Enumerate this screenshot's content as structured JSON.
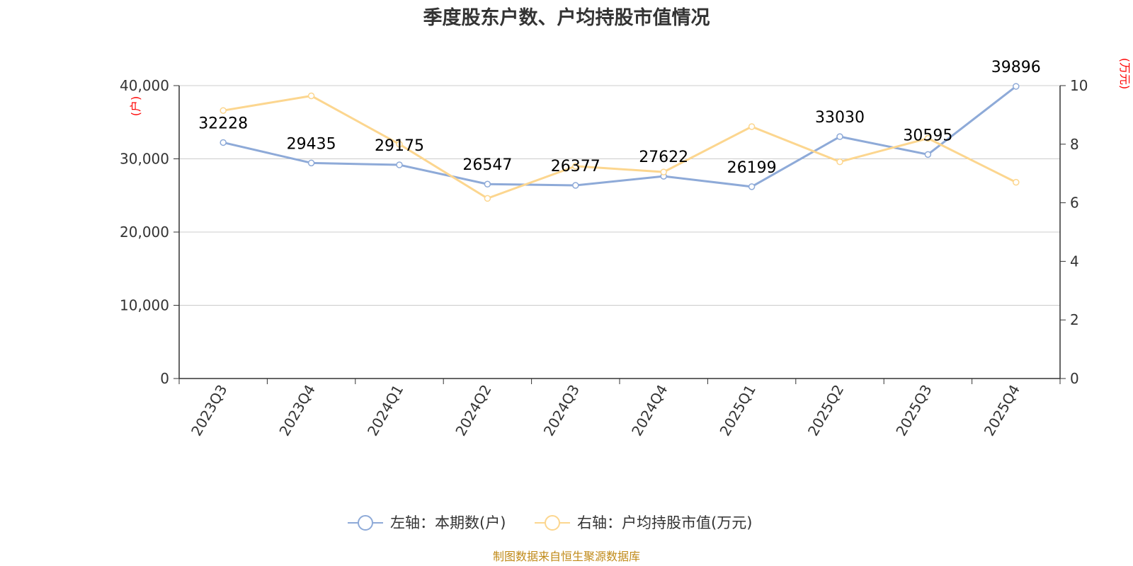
{
  "chart_data": {
    "type": "line",
    "title": "季度股东户数、户均持股市值情况",
    "categories": [
      "2023Q3",
      "2023Q4",
      "2024Q1",
      "2024Q2",
      "2024Q3",
      "2024Q4",
      "2025Q1",
      "2025Q2",
      "2025Q3",
      "2025Q4"
    ],
    "left_axis": {
      "unit": "(户)",
      "ylim": [
        0,
        40000
      ],
      "ticks": [
        0,
        10000,
        20000,
        30000,
        40000
      ],
      "tick_labels": [
        "0",
        "10,000",
        "20,000",
        "30,000",
        "40,000"
      ]
    },
    "right_axis": {
      "unit": "(万元)",
      "ylim": [
        0,
        10
      ],
      "ticks": [
        0,
        2,
        4,
        6,
        8,
        10
      ],
      "tick_labels": [
        "0",
        "2",
        "4",
        "6",
        "8",
        "10"
      ]
    },
    "series": [
      {
        "name": "左轴：本期数(户)",
        "axis": "left",
        "color": "#8eaad8",
        "values": [
          32228,
          29435,
          29175,
          26547,
          26377,
          27622,
          26199,
          33030,
          30595,
          39896
        ],
        "data_labels": [
          "32228",
          "29435",
          "29175",
          "26547",
          "26377",
          "27622",
          "26199",
          "33030",
          "30595",
          "39896"
        ]
      },
      {
        "name": "右轴：户均持股市值(万元)",
        "axis": "right",
        "color": "#fcd68f",
        "values": [
          9.15,
          9.65,
          8.0,
          6.15,
          7.25,
          7.05,
          8.6,
          7.4,
          8.2,
          6.7
        ]
      }
    ],
    "grid": true,
    "legend_position": "bottom-center"
  },
  "source_note": "制图数据来自恒生聚源数据库"
}
